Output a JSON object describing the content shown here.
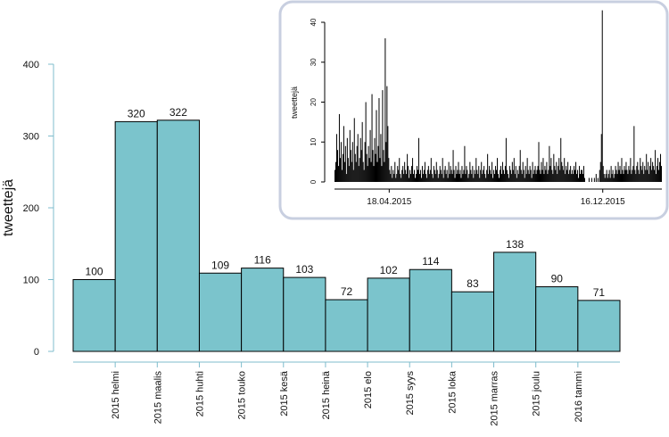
{
  "chart_data": [
    {
      "type": "histogram",
      "y_label": "tweettejä",
      "bins": [
        null,
        "2015 helmi",
        "2015 maalis",
        "2015 huhti",
        "2015 touko",
        "2015 kesä",
        "2015 heinä",
        "2015 elo",
        "2015 syys",
        "2015 loka",
        "2015 marras",
        "2015 joulu",
        "2016 tammi",
        null
      ],
      "values": [
        100,
        320,
        322,
        109,
        116,
        103,
        72,
        102,
        114,
        83,
        138,
        90,
        71
      ],
      "value_labels": [
        "100",
        "320",
        "322",
        "109",
        "116",
        "103",
        "72",
        "102",
        "114",
        "83",
        "138",
        "90",
        "71"
      ],
      "color": "#7bc4cc",
      "ylim": [
        0,
        400
      ],
      "yticks": [
        0,
        100,
        200,
        300,
        400
      ]
    },
    {
      "type": "daily-bar",
      "y_label": "tweettejä",
      "color": "#000000",
      "xlim": [
        0,
        371
      ],
      "xticks": [
        {
          "value": 62,
          "label": "18.04.2015"
        },
        {
          "value": 304,
          "label": "16.12.2015"
        }
      ],
      "ylim": [
        0,
        40
      ],
      "yticks": [
        0,
        10,
        20,
        30,
        40
      ],
      "values": [
        3,
        5,
        12,
        8,
        4,
        17,
        6,
        10,
        3,
        7,
        14,
        5,
        9,
        2,
        11,
        6,
        4,
        13,
        8,
        5,
        10,
        3,
        16,
        7,
        5,
        9,
        12,
        4,
        6,
        11,
        8,
        15,
        5,
        3,
        10,
        20,
        7,
        4,
        9,
        6,
        13,
        5,
        22,
        8,
        4,
        11,
        7,
        18,
        5,
        9,
        21,
        6,
        12,
        4,
        23,
        8,
        5,
        36,
        10,
        24,
        14,
        6,
        3,
        2,
        4,
        1,
        3,
        2,
        5,
        1,
        2,
        4,
        3,
        6,
        2,
        1,
        3,
        4,
        2,
        5,
        3,
        2,
        7,
        4,
        1,
        3,
        2,
        4,
        6,
        2,
        3,
        1,
        2,
        4,
        3,
        11,
        2,
        3,
        1,
        4,
        2,
        3,
        5,
        2,
        1,
        3,
        4,
        2,
        3,
        6,
        2,
        1,
        4,
        3,
        2,
        5,
        3,
        1,
        2,
        4,
        3,
        2,
        6,
        1,
        3,
        4,
        2,
        3,
        1,
        5,
        2,
        4,
        3,
        2,
        8,
        3,
        1,
        4,
        2,
        3,
        5,
        2,
        3,
        1,
        4,
        2,
        3,
        9,
        2,
        4,
        3,
        1,
        2,
        5,
        3,
        2,
        4,
        1,
        3,
        2,
        6,
        3,
        2,
        4,
        1,
        3,
        5,
        2,
        3,
        4,
        2,
        1,
        3,
        7,
        2,
        4,
        3,
        2,
        5,
        1,
        3,
        2,
        4,
        3,
        6,
        2,
        1,
        3,
        4,
        2,
        5,
        3,
        2,
        4,
        11,
        3,
        2,
        1,
        4,
        3,
        2,
        5,
        3,
        6,
        2,
        4,
        1,
        3,
        2,
        4,
        8,
        3,
        2,
        5,
        3,
        1,
        4,
        2,
        6,
        3,
        2,
        4,
        3,
        1,
        5,
        2,
        3,
        4,
        2,
        3,
        4,
        10,
        3,
        2,
        5,
        3,
        6,
        2,
        4,
        3,
        5,
        2,
        3,
        9,
        4,
        6,
        3,
        2,
        7,
        4,
        3,
        5,
        2,
        4,
        6,
        3,
        11,
        5,
        4,
        3,
        6,
        2,
        4,
        3,
        5,
        2,
        3,
        4,
        2,
        3,
        2,
        4,
        3,
        5,
        2,
        3,
        1,
        4,
        2,
        3,
        3,
        2,
        4,
        1,
        0,
        0,
        0,
        0,
        1,
        0,
        0,
        1,
        0,
        0,
        1,
        0,
        2,
        0,
        1,
        0,
        3,
        5,
        12,
        43,
        4,
        2,
        1,
        2,
        3,
        1,
        2,
        3,
        1,
        4,
        2,
        3,
        1,
        2,
        4,
        3,
        2,
        5,
        3,
        4,
        2,
        6,
        3,
        2,
        4,
        3,
        5,
        3,
        2,
        4,
        3,
        6,
        2,
        3,
        4,
        14,
        3,
        2,
        4,
        5,
        3,
        2,
        6,
        4,
        3,
        5,
        2,
        4,
        3,
        7,
        3,
        5,
        2,
        4,
        6,
        3,
        5,
        4,
        3,
        8,
        2,
        4,
        6,
        3,
        5,
        7,
        4
      ]
    }
  ]
}
